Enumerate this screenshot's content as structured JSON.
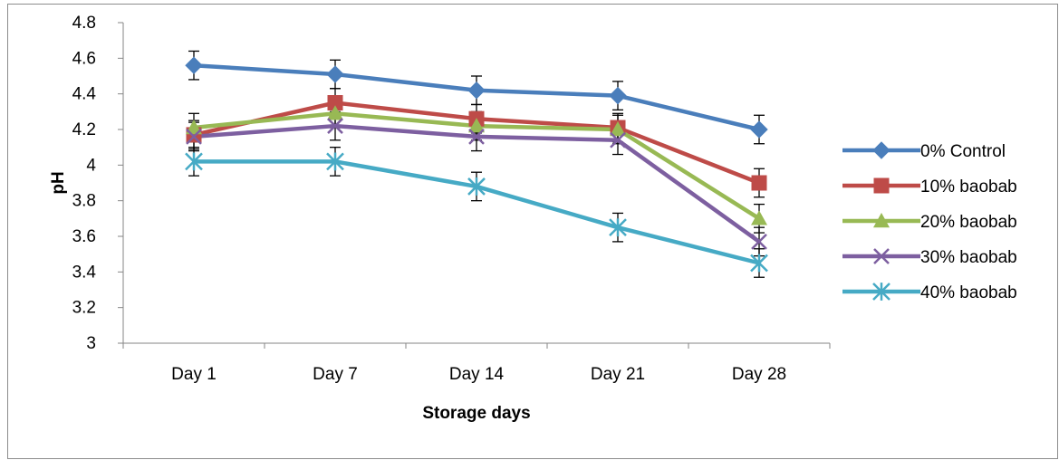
{
  "chart_data": {
    "type": "line",
    "title": "",
    "xlabel": "Storage days",
    "ylabel": "pH",
    "categories": [
      "Day 1",
      "Day 7",
      "Day 14",
      "Day 21",
      "Day 28"
    ],
    "ylim": [
      3,
      4.8
    ],
    "yticks": [
      "3",
      "3.2",
      "3.4",
      "3.6",
      "3.8",
      "4",
      "4.2",
      "4.4",
      "4.6",
      "4.8"
    ],
    "grid": false,
    "legend_position": "right",
    "error_bar": 0.08,
    "series": [
      {
        "name": "0% Control",
        "values": [
          4.56,
          4.51,
          4.42,
          4.39,
          4.2
        ],
        "color": "#4a7ebb",
        "marker": "diamond"
      },
      {
        "name": "10% baobab",
        "values": [
          4.17,
          4.35,
          4.26,
          4.21,
          3.9
        ],
        "color": "#be4b48",
        "marker": "square"
      },
      {
        "name": "20% baobab",
        "values": [
          4.21,
          4.29,
          4.22,
          4.2,
          3.7
        ],
        "color": "#98b954",
        "marker": "triangle"
      },
      {
        "name": "30% baobab",
        "values": [
          4.16,
          4.22,
          4.16,
          4.14,
          3.57
        ],
        "color": "#7d5fa0",
        "marker": "x"
      },
      {
        "name": "40% baobab",
        "values": [
          4.02,
          4.02,
          3.88,
          3.65,
          3.45
        ],
        "color": "#46aac5",
        "marker": "star"
      }
    ]
  }
}
